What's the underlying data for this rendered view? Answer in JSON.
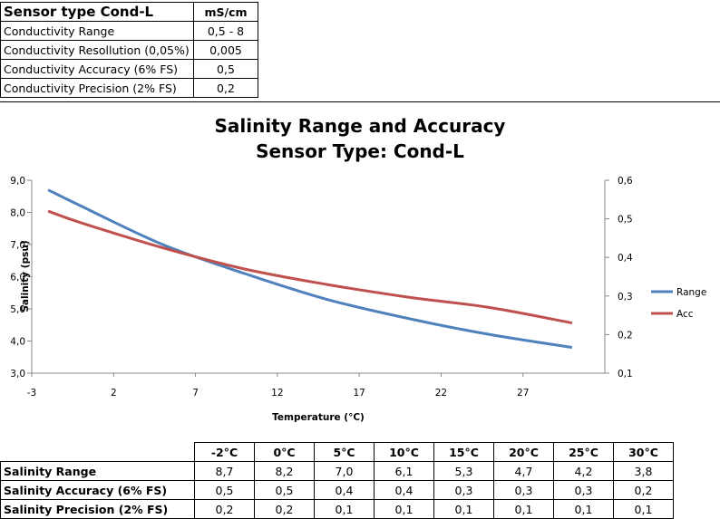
{
  "spec_table": {
    "header": [
      "Sensor type Cond-L",
      "mS/cm"
    ],
    "rows": [
      [
        "Conductivity Range",
        "0,5 - 8"
      ],
      [
        "Conductivity Resollution (0,05%)",
        "0,005"
      ],
      [
        "Conductivity Accuracy   (6% FS)",
        "0,5"
      ],
      [
        "Conductivity Precision   (2% FS)",
        "0,2"
      ]
    ]
  },
  "chart_data": {
    "type": "line",
    "title": "Salinity Range and Accuracy",
    "subtitle": "Sensor Type: Cond-L",
    "xlabel": "Temperature (°C)",
    "ylabel": "Salinity (psu)",
    "xlim": [
      -3,
      32
    ],
    "x_ticks": [
      "-3",
      "2",
      "7",
      "12",
      "17",
      "22",
      "27"
    ],
    "x_tick_values": [
      -3,
      2,
      7,
      12,
      17,
      22,
      27
    ],
    "ylim": [
      3,
      9
    ],
    "y_ticks": [
      "3,0",
      "4,0",
      "5,0",
      "6,0",
      "7,0",
      "8,0",
      "9,0"
    ],
    "y_tick_values": [
      3,
      4,
      5,
      6,
      7,
      8,
      9
    ],
    "y2lim": [
      0.1,
      0.6
    ],
    "y2_ticks": [
      "0,1",
      "0,2",
      "0,3",
      "0,4",
      "0,5",
      "0,6"
    ],
    "y2_tick_values": [
      0.1,
      0.2,
      0.3,
      0.4,
      0.5,
      0.6
    ],
    "grid": false,
    "legend_position": "right",
    "series": [
      {
        "name": "Range",
        "axis": "left",
        "color": "#4F81BD",
        "x": [
          -2,
          0,
          5,
          10,
          15,
          20,
          25,
          30
        ],
        "values": [
          8.7,
          8.2,
          7.0,
          6.1,
          5.3,
          4.7,
          4.2,
          3.8
        ]
      },
      {
        "name": "Acc",
        "axis": "right",
        "color": "#C0504D",
        "x": [
          -2,
          0,
          5,
          10,
          15,
          20,
          25,
          30
        ],
        "values": [
          0.52,
          0.49,
          0.425,
          0.37,
          0.33,
          0.297,
          0.27,
          0.23
        ]
      }
    ]
  },
  "salinity_table": {
    "columns": [
      "-2°C",
      "0°C",
      "5°C",
      "10°C",
      "15°C",
      "20°C",
      "25°C",
      "30°C"
    ],
    "rows": [
      {
        "label": "Salinity Range",
        "values": [
          "8,7",
          "8,2",
          "7,0",
          "6,1",
          "5,3",
          "4,7",
          "4,2",
          "3,8"
        ]
      },
      {
        "label": "Salinity Accuracy  (6% FS)",
        "values": [
          "0,5",
          "0,5",
          "0,4",
          "0,4",
          "0,3",
          "0,3",
          "0,3",
          "0,2"
        ]
      },
      {
        "label": "Salinity Precision (2% FS)",
        "values": [
          "0,2",
          "0,2",
          "0,1",
          "0,1",
          "0,1",
          "0,1",
          "0,1",
          "0,1"
        ]
      }
    ]
  }
}
